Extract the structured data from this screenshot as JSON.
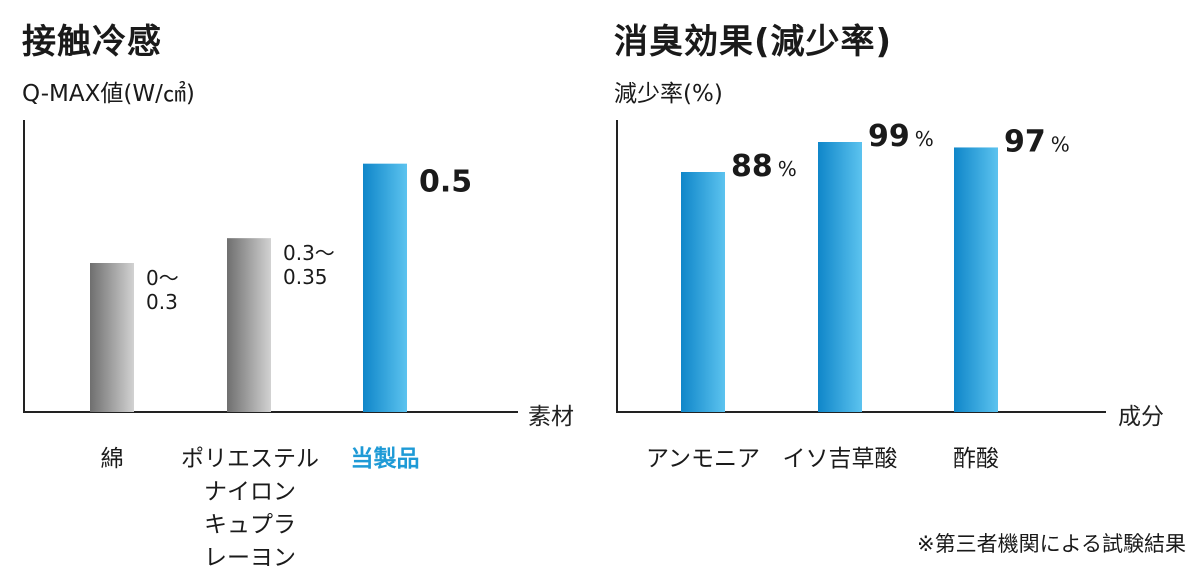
{
  "chart_data": [
    {
      "type": "bar",
      "title": "接触冷感",
      "ylabel": "Q-MAX値(W/㎠)",
      "xlabel": "素材",
      "ylim": [
        0,
        0.6
      ],
      "categories": [
        [
          "綿"
        ],
        [
          "ポリエステル",
          "ナイロン",
          "キュプラ",
          "レーヨン"
        ],
        [
          "当製品"
        ]
      ],
      "values": [
        0.3,
        0.35,
        0.5
      ],
      "value_labels": [
        [
          "0〜",
          "0.3"
        ],
        [
          "0.3〜",
          "0.35"
        ],
        [
          "0.5"
        ]
      ],
      "highlight_index": 2
    },
    {
      "type": "bar",
      "title": "消臭効果(減少率)",
      "ylabel": "減少率(%)",
      "xlabel": "成分",
      "ylim": [
        0,
        112
      ],
      "categories": [
        [
          "アンモニア"
        ],
        [
          "イソ吉草酸"
        ],
        [
          "酢酸"
        ]
      ],
      "values": [
        88,
        99,
        97
      ],
      "value_labels": [
        [
          "88"
        ],
        [
          "99"
        ],
        [
          "97"
        ]
      ],
      "unit": "%"
    }
  ],
  "colors": {
    "blue_light": "#5cc3ef",
    "blue_dark": "#0f86c9",
    "gray_light": "#d2d2d2",
    "gray_dark": "#6f6f6f",
    "highlight_text": "#1e9ad6",
    "axis": "#222222"
  },
  "footnote": "※第三者機関による試験結果"
}
